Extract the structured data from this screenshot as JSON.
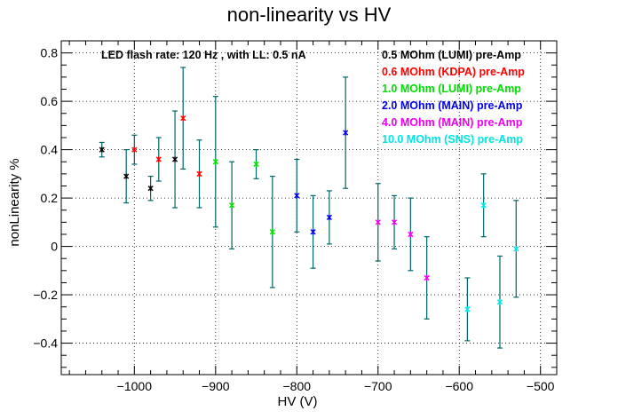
{
  "chart_data": {
    "type": "scatter",
    "title": "non-linearity vs HV",
    "xlabel": "HV (V)",
    "ylabel": "nonLinearity %",
    "xlim": [
      -1090,
      -480
    ],
    "ylim": [
      -0.53,
      0.85
    ],
    "xticks": [
      -1000,
      -900,
      -800,
      -700,
      -600,
      -500
    ],
    "yticks": [
      -0.4,
      -0.2,
      0,
      0.2,
      0.4,
      0.6,
      0.8
    ],
    "xtick_labels": [
      "−1000",
      "−900",
      "−800",
      "−700",
      "−600",
      "−500"
    ],
    "ytick_labels": [
      "−0.4",
      "−0.2",
      "0",
      "0.2",
      "0.4",
      "0.6",
      "0.8"
    ],
    "grid": true,
    "legend_position": "top-right",
    "annotation": "LED flash rate: 120 Hz , with LL: 0.5 nA",
    "error_bar_color": "#006666",
    "series": [
      {
        "name": "0.5 MOhm (LUMI) pre-Amp",
        "color": "#000000",
        "points": [
          {
            "x": -1040,
            "y": 0.4,
            "yerr": 0.03
          },
          {
            "x": -1010,
            "y": 0.29,
            "yerr": 0.11
          },
          {
            "x": -980,
            "y": 0.24,
            "yerr": 0.05
          },
          {
            "x": -950,
            "y": 0.36,
            "yerr": 0.2
          }
        ]
      },
      {
        "name": "0.6 MOhm (KDPA) pre-Amp",
        "color": "#ff0000",
        "points": [
          {
            "x": -1000,
            "y": 0.4,
            "yerr": 0.06
          },
          {
            "x": -970,
            "y": 0.36,
            "yerr": 0.09
          },
          {
            "x": -940,
            "y": 0.53,
            "yerr": 0.21
          },
          {
            "x": -920,
            "y": 0.3,
            "yerr": 0.14
          }
        ]
      },
      {
        "name": "1.0 MOhm (LUMI) pre-Amp",
        "color": "#00dd00",
        "points": [
          {
            "x": -900,
            "y": 0.35,
            "yerr": 0.27
          },
          {
            "x": -880,
            "y": 0.17,
            "yerr": 0.18
          },
          {
            "x": -850,
            "y": 0.34,
            "yerr": 0.06
          },
          {
            "x": -830,
            "y": 0.06,
            "yerr": 0.23
          }
        ]
      },
      {
        "name": "2.0 MOhm (MAIN) pre-Amp",
        "color": "#0000ee",
        "points": [
          {
            "x": -800,
            "y": 0.21,
            "yerr": 0.15
          },
          {
            "x": -780,
            "y": 0.06,
            "yerr": 0.15
          },
          {
            "x": -760,
            "y": 0.12,
            "yerr": 0.11
          },
          {
            "x": -740,
            "y": 0.47,
            "yerr": 0.23
          }
        ]
      },
      {
        "name": "4.0 MOhm (MAIN) pre-Amp",
        "color": "#ee00ee",
        "points": [
          {
            "x": -700,
            "y": 0.1,
            "yerr": 0.16
          },
          {
            "x": -680,
            "y": 0.1,
            "yerr": 0.11
          },
          {
            "x": -660,
            "y": 0.05,
            "yerr": 0.15
          },
          {
            "x": -640,
            "y": -0.13,
            "yerr": 0.17
          }
        ]
      },
      {
        "name": "10.0 MOhm (SNS) pre-Amp",
        "color": "#00e5e5",
        "points": [
          {
            "x": -590,
            "y": -0.26,
            "yerr": 0.13
          },
          {
            "x": -570,
            "y": 0.17,
            "yerr": 0.13
          },
          {
            "x": -550,
            "y": -0.23,
            "yerr": 0.19
          },
          {
            "x": -530,
            "y": -0.01,
            "yerr": 0.2
          }
        ]
      }
    ]
  }
}
